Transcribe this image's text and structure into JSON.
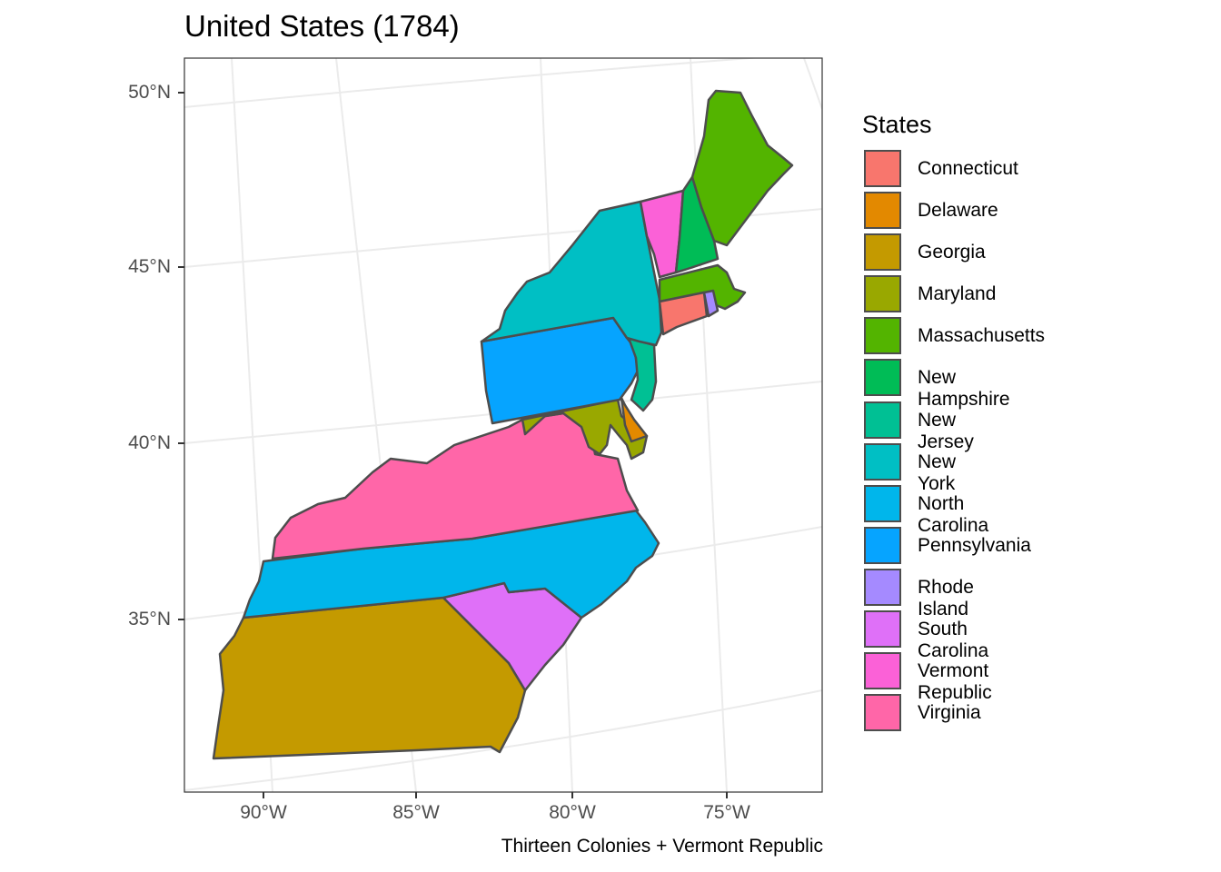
{
  "map": {
    "title": "United States (1784)",
    "caption": "Thirteen Colonies + Vermont Republic",
    "legend_title": "States",
    "latitude_labels": [
      "50°N",
      "45°N",
      "40°N",
      "35°N"
    ],
    "longitude_labels": [
      "90°W",
      "85°W",
      "80°W",
      "75°W"
    ],
    "border_color": "#4d4d4d",
    "states": [
      {
        "name": "Connecticut",
        "color": "#F8766D"
      },
      {
        "name": "Delaware",
        "color": "#E38900"
      },
      {
        "name": "Georgia",
        "color": "#C49A00"
      },
      {
        "name": "Maryland",
        "color": "#99A800"
      },
      {
        "name": "Massachusetts",
        "color": "#53B400"
      },
      {
        "name": "New Hampshire",
        "color": "#00BC56"
      },
      {
        "name": "New Jersey",
        "color": "#00C094"
      },
      {
        "name": "New York",
        "color": "#00BFC4"
      },
      {
        "name": "North Carolina",
        "color": "#00B6EB"
      },
      {
        "name": "Pennsylvania",
        "color": "#06A4FF"
      },
      {
        "name": "Rhode Island",
        "color": "#A58AFF"
      },
      {
        "name": "South Carolina",
        "color": "#DF70F8"
      },
      {
        "name": "Vermont Republic",
        "color": "#FB61D7"
      },
      {
        "name": "Virginia",
        "color": "#FF66A8"
      }
    ]
  }
}
